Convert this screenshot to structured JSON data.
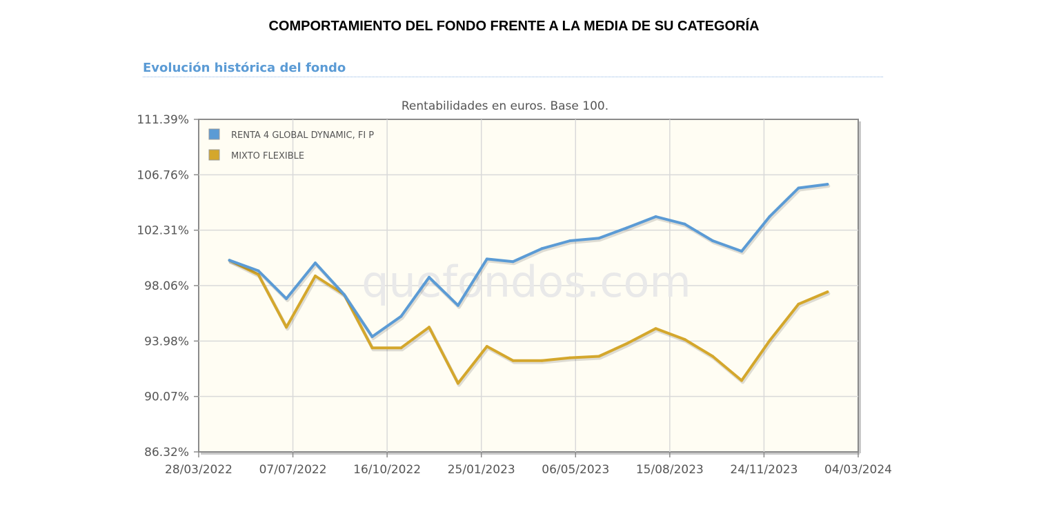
{
  "page_title": "COMPORTAMIENTO DEL FONDO FRENTE A LA MEDIA DE SU CATEGORÍA",
  "section_heading": "Evolución histórica del fondo",
  "watermark": "quefondos.com",
  "chart_data": {
    "type": "line",
    "subtitle": "Rentabilidades en euros. Base 100.",
    "y_ticks": [
      "111.39%",
      "106.76%",
      "102.31%",
      "98.06%",
      "93.98%",
      "90.07%",
      "86.32%"
    ],
    "x_ticks": [
      "28/03/2022",
      "07/07/2022",
      "16/10/2022",
      "25/01/2023",
      "06/05/2023",
      "15/08/2023",
      "24/11/2023",
      "04/03/2024"
    ],
    "ylim": [
      86.32,
      111.39
    ],
    "grid": true,
    "legend_position": "top-left",
    "series": [
      {
        "name": "RENTA 4 GLOBAL DYNAMIC, FI P",
        "color": "#5b9bd5",
        "x": [
          "2022-04-30",
          "2022-05-31",
          "2022-06-30",
          "2022-07-31",
          "2022-08-31",
          "2022-09-30",
          "2022-10-31",
          "2022-11-30",
          "2022-12-31",
          "2023-01-31",
          "2023-02-28",
          "2023-03-31",
          "2023-04-30",
          "2023-05-31",
          "2023-06-30",
          "2023-07-31",
          "2023-08-31",
          "2023-09-30",
          "2023-10-31",
          "2023-11-30",
          "2023-12-31",
          "2024-01-31"
        ],
        "values": [
          100.0,
          99.2,
          97.1,
          99.8,
          97.4,
          94.3,
          95.8,
          98.7,
          96.6,
          100.1,
          99.9,
          100.9,
          101.5,
          101.7,
          102.5,
          103.4,
          102.8,
          101.5,
          100.7,
          103.4,
          105.7,
          106.0
        ]
      },
      {
        "name": "MIXTO FLEXIBLE",
        "color": "#d4a72c",
        "x": [
          "2022-04-30",
          "2022-05-31",
          "2022-06-30",
          "2022-07-31",
          "2022-08-31",
          "2022-09-30",
          "2022-10-31",
          "2022-11-30",
          "2022-12-31",
          "2023-01-31",
          "2023-02-28",
          "2023-03-31",
          "2023-04-30",
          "2023-05-31",
          "2023-06-30",
          "2023-07-31",
          "2023-08-31",
          "2023-09-30",
          "2023-10-31",
          "2023-11-30",
          "2023-12-31",
          "2024-01-31"
        ],
        "values": [
          100.0,
          98.9,
          95.0,
          98.8,
          97.4,
          93.5,
          93.5,
          95.0,
          91.0,
          93.6,
          92.6,
          92.6,
          92.8,
          92.9,
          93.8,
          94.9,
          94.1,
          92.9,
          91.2,
          94.0,
          96.7,
          97.6
        ]
      }
    ]
  }
}
